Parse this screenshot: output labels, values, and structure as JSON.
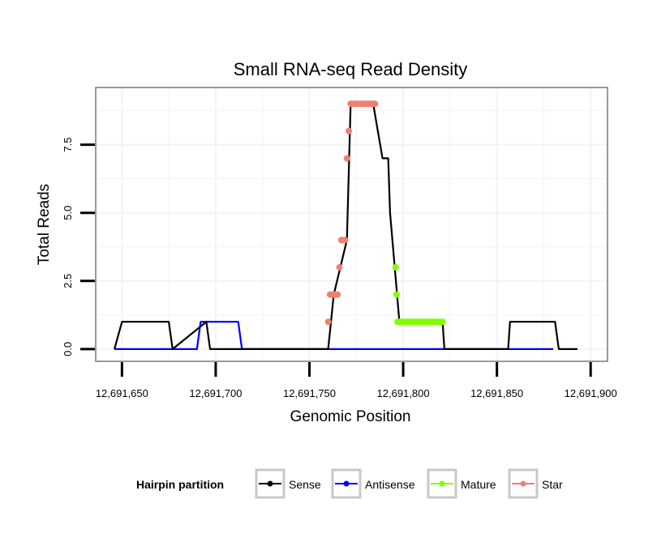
{
  "chart_data": {
    "type": "line",
    "title": "Small RNA-seq Read Density",
    "xlabel": "Genomic Position",
    "ylabel": "Total Reads",
    "xlim": [
      12691636,
      12691909
    ],
    "ylim": [
      -0.45,
      9.6
    ],
    "x_ticks": [
      12691650,
      12691700,
      12691750,
      12691800,
      12691850,
      12691900
    ],
    "x_tick_labels": [
      "12,691,650",
      "12,691,700",
      "12,691,750",
      "12,691,800",
      "12,691,850",
      "12,691,900"
    ],
    "y_ticks": [
      0,
      2.5,
      5,
      7.5
    ],
    "y_tick_labels": [
      "0.0",
      "2.5",
      "5.0",
      "7.5"
    ],
    "grid": true,
    "legend": {
      "title": "Hairpin partition",
      "position": "bottom",
      "entries": [
        "Sense",
        "Antisense",
        "Mature",
        "Star"
      ]
    },
    "colors": {
      "Sense": "#000000",
      "Antisense": "#0000ff",
      "Mature": "#7fff00",
      "Star": "#f08070",
      "panel_border": "#808080",
      "grid": "#f3f3f3"
    },
    "series": [
      {
        "name": "Sense",
        "x": [
          12691646,
          12691650,
          12691675,
          12691677,
          12691695,
          12691697,
          12691760,
          12691763,
          12691770,
          12691772,
          12691784,
          12691789,
          12691792,
          12691793,
          12691798,
          12691821,
          12691822,
          12691856,
          12691857,
          12691881,
          12691883,
          12691893
        ],
        "values": [
          0,
          1,
          1,
          0,
          1,
          0,
          0,
          2,
          4,
          9,
          9,
          7,
          7,
          5,
          1,
          1,
          0,
          0,
          1,
          1,
          0,
          0
        ]
      },
      {
        "name": "Antisense",
        "x": [
          12691646,
          12691690,
          12691692,
          12691712,
          12691714,
          12691880
        ],
        "values": [
          0,
          0,
          1,
          1,
          0,
          0
        ]
      },
      {
        "name": "Mature",
        "x": [
          12691796,
          12691796.5,
          12691797,
          12691798,
          12691799,
          12691800,
          12691801,
          12691802,
          12691803,
          12691804,
          12691805,
          12691806,
          12691807,
          12691808,
          12691809,
          12691810,
          12691811,
          12691812,
          12691813,
          12691814,
          12691815,
          12691816,
          12691817,
          12691818,
          12691819,
          12691820,
          12691821
        ],
        "values": [
          3,
          2,
          1,
          1,
          1,
          1,
          1,
          1,
          1,
          1,
          1,
          1,
          1,
          1,
          1,
          1,
          1,
          1,
          1,
          1,
          1,
          1,
          1,
          1,
          1,
          1,
          1
        ]
      },
      {
        "name": "Star",
        "x": [
          12691760,
          12691761,
          12691762,
          12691763,
          12691764,
          12691765,
          12691766,
          12691767,
          12691768,
          12691769,
          12691770,
          12691771,
          12691772,
          12691773,
          12691774,
          12691775,
          12691776,
          12691777,
          12691778,
          12691779,
          12691780,
          12691781,
          12691782,
          12691783,
          12691784,
          12691785
        ],
        "values": [
          1,
          2,
          2,
          2,
          2,
          2,
          3,
          4,
          4,
          4,
          7,
          8,
          9,
          9,
          9,
          9,
          9,
          9,
          9,
          9,
          9,
          9,
          9,
          9,
          9,
          9
        ]
      }
    ]
  }
}
